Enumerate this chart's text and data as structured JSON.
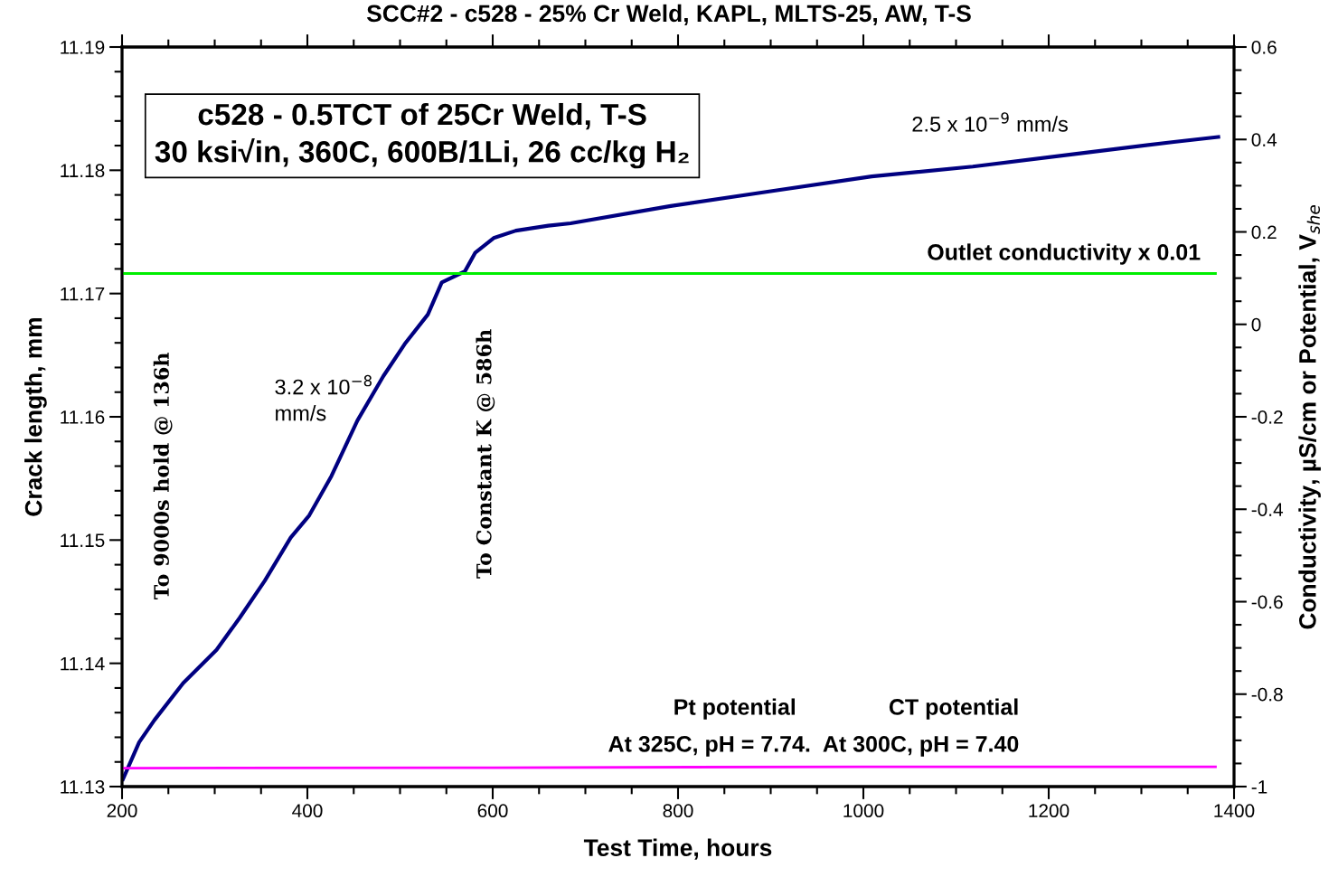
{
  "chart_data": {
    "type": "line",
    "title": "SCC#2 - c528 - 25% Cr Weld, KAPL, MLTS-25, AW, T-S",
    "xlabel": "Test Time, hours",
    "ylabel": "Crack length, mm",
    "y2label": "Conductivity, µS/cm or Potential, V$_{she}$",
    "xlim": [
      200,
      1400
    ],
    "xticks": [
      200,
      400,
      600,
      800,
      1000,
      1200,
      1400
    ],
    "ylim": [
      11.13,
      11.19
    ],
    "yticks": [
      11.13,
      11.14,
      11.15,
      11.16,
      11.17,
      11.18,
      11.19
    ],
    "y2lim": [
      -1,
      0.6
    ],
    "y2ticks": [
      -1,
      -0.8,
      -0.6,
      -0.4,
      -0.2,
      0,
      0.2,
      0.4,
      0.6
    ],
    "grid": false,
    "legend": false,
    "marker": "none",
    "line_style": "solid",
    "series": [
      {
        "color": "#000080",
        "x": [
          201,
          218.5,
          235,
          266,
          302,
          327,
          354,
          382,
          402,
          426,
          454,
          482,
          505,
          530,
          545,
          570,
          581,
          601,
          625,
          660,
          684,
          792,
          900,
          1009,
          1118,
          1226,
          1335,
          1383
        ],
        "values": [
          11.1306,
          11.1336,
          11.1354,
          11.1384,
          11.1411,
          11.1437,
          11.1467,
          11.1502,
          11.152,
          11.1552,
          11.1597,
          11.1633,
          11.1659,
          11.1683,
          11.1709,
          11.1718,
          11.1733,
          11.1745,
          11.1751,
          11.1755,
          11.1757,
          11.1771,
          11.1783,
          11.1795,
          11.1803,
          11.1813,
          11.1823,
          11.1827
        ]
      },
      {
        "color": "#00ee00",
        "axis": "y2",
        "x": [
          200,
          600,
          1000,
          1380
        ],
        "values": [
          0.11,
          0.11,
          0.11,
          0.11
        ]
      },
      {
        "color": "#ff00ff",
        "axis": "y2",
        "x": [
          200,
          600,
          1000,
          1380
        ],
        "values": [
          -0.96,
          -0.959,
          -0.957,
          -0.957
        ]
      }
    ],
    "annotations": [
      "c528 - 0.5TCT of 25Cr Weld, T-S\n30 ksi√in, 360C, 600B/1Li, 26 cc/kg H₂",
      "2.5 x 10$^{−9}$ mm/s",
      "3.2 x 10$^{−8}$\nmm/s",
      "To 9000s hold @ 136h",
      "To Constant K @ 586h",
      "Outlet conductivity x 0.01",
      "Pt potential",
      "CT potential",
      "At 325C, pH = 7.74.  At 300C, pH = 7.40"
    ]
  }
}
